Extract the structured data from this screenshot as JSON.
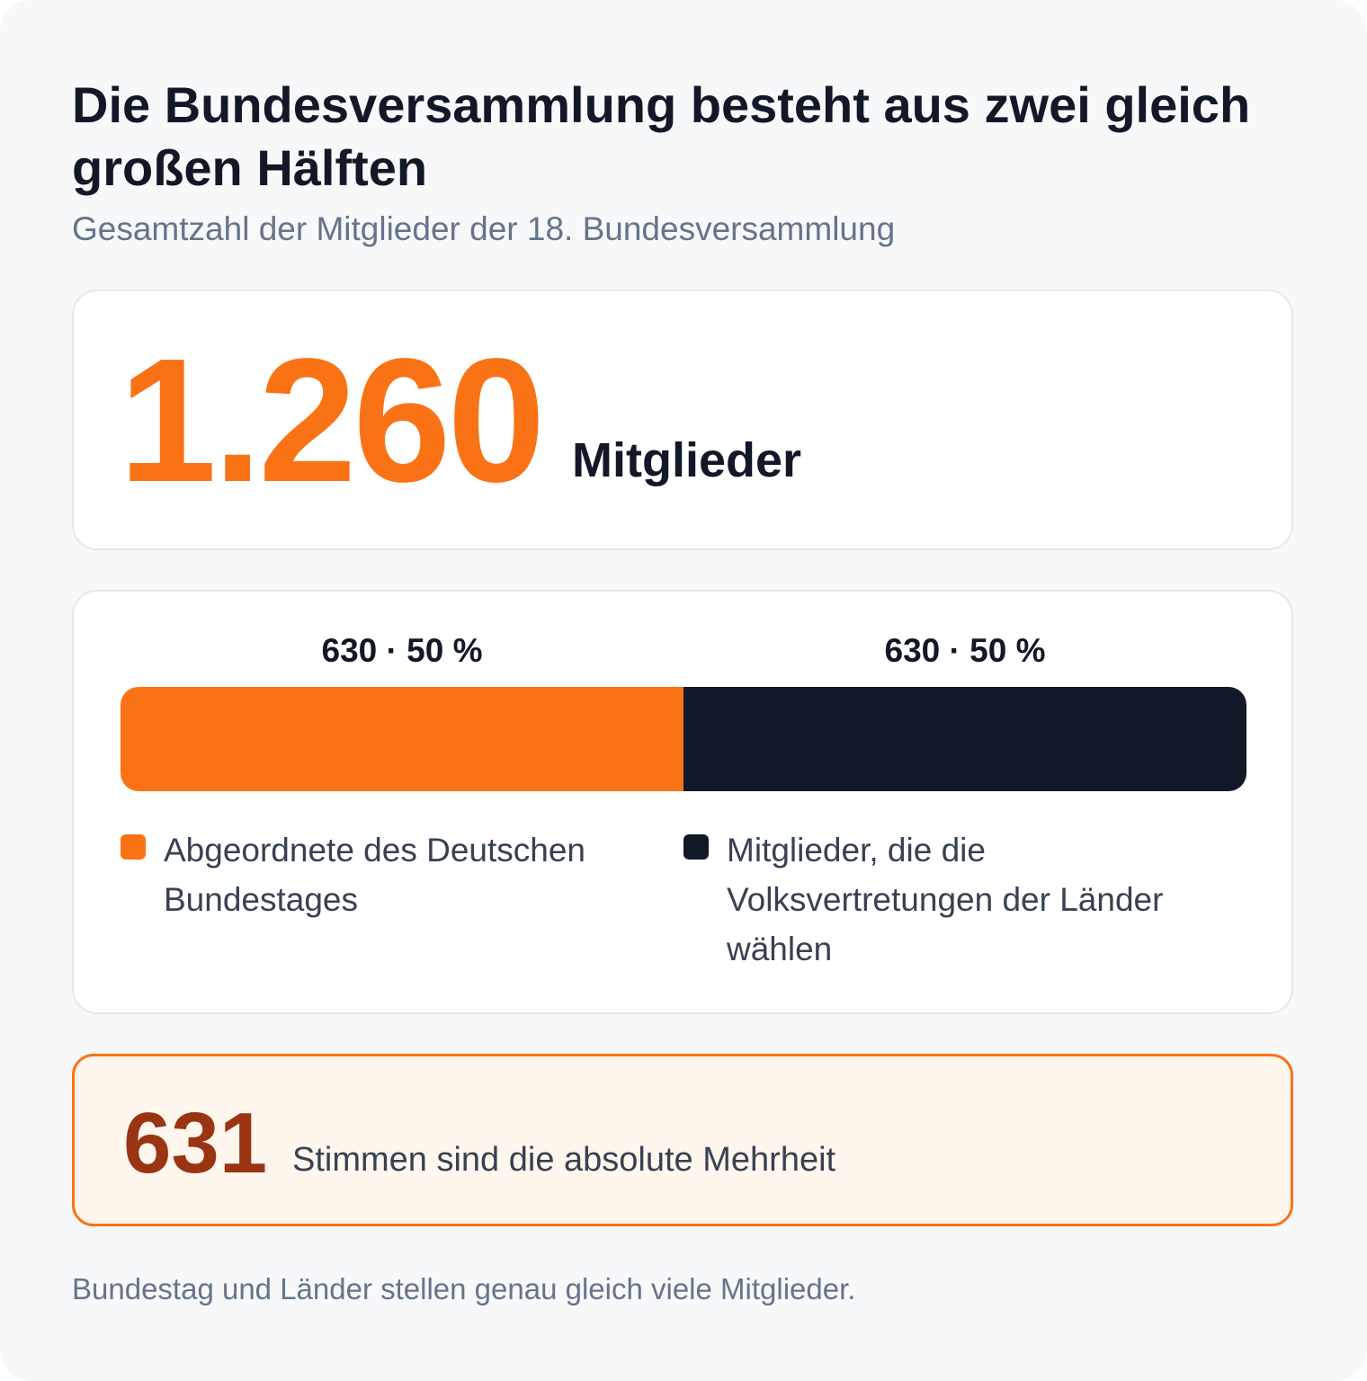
{
  "title": "Die Bundesversammlung besteht aus zwei gleich großen Hälften",
  "subtitle": "Gesamtzahl der Mitglieder der 18. Bundesversammlung",
  "total": {
    "value": "1.260",
    "unit": "Mitglieder"
  },
  "chart_data": {
    "type": "bar",
    "orientation": "horizontal-stacked",
    "total": 1260,
    "categories": [
      "Abgeordnete des Deutschen Bundestages",
      "Mitglieder, die die Volksvertretungen der Länder wählen"
    ],
    "values": [
      630,
      630
    ],
    "percentages": [
      50,
      50
    ],
    "data_labels": [
      "630 · 50 %",
      "630 · 50 %"
    ],
    "colors": [
      "#f97316",
      "#111827"
    ],
    "legend_position": "bottom"
  },
  "majority": {
    "value": "631",
    "text": "Stimmen sind die absolute Mehrheit"
  },
  "footnote": "Bundestag und Länder stellen genau gleich viele Mitglieder."
}
